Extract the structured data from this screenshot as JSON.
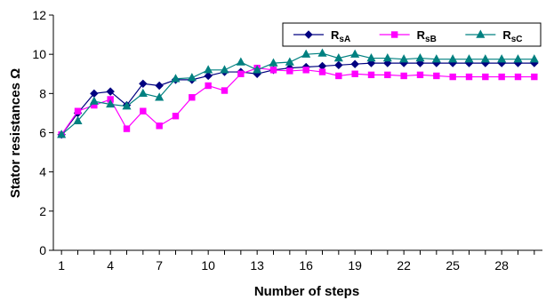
{
  "chart_data": {
    "type": "line",
    "title": "",
    "xlabel": "Number of steps",
    "ylabel": "Stator resistances Ω",
    "xlim": [
      0.5,
      30.5
    ],
    "ylim": [
      0,
      12
    ],
    "x_ticks": [
      1,
      4,
      7,
      10,
      13,
      16,
      19,
      22,
      25,
      28
    ],
    "y_ticks": [
      0,
      2,
      4,
      6,
      8,
      10,
      12
    ],
    "grid": false,
    "legend_position": "top-right",
    "x": [
      1,
      2,
      3,
      4,
      5,
      6,
      7,
      8,
      9,
      10,
      11,
      12,
      13,
      14,
      15,
      16,
      17,
      18,
      19,
      20,
      21,
      22,
      23,
      24,
      25,
      26,
      27,
      28,
      29,
      30
    ],
    "series": [
      {
        "name": "RsA",
        "name_main": "R",
        "name_sub": "sA",
        "color": "#000080",
        "marker": "diamond",
        "values": [
          5.9,
          7.0,
          8.0,
          8.1,
          7.4,
          8.5,
          8.4,
          8.7,
          8.7,
          8.9,
          9.1,
          9.1,
          9.0,
          9.2,
          9.3,
          9.35,
          9.4,
          9.45,
          9.5,
          9.55,
          9.55,
          9.55,
          9.55,
          9.55,
          9.55,
          9.55,
          9.55,
          9.55,
          9.55,
          9.55
        ]
      },
      {
        "name": "RsB",
        "name_main": "R",
        "name_sub": "sB",
        "color": "#ff00ff",
        "marker": "square",
        "values": [
          5.9,
          7.1,
          7.4,
          7.7,
          6.2,
          7.1,
          6.35,
          6.85,
          7.8,
          8.4,
          8.15,
          9.0,
          9.3,
          9.2,
          9.15,
          9.2,
          9.1,
          8.9,
          9.0,
          8.95,
          8.95,
          8.9,
          8.95,
          8.9,
          8.85,
          8.85,
          8.85,
          8.85,
          8.85,
          8.85
        ]
      },
      {
        "name": "RsC",
        "name_main": "R",
        "name_sub": "sC",
        "color": "#008080",
        "marker": "triangle",
        "values": [
          5.9,
          6.6,
          7.6,
          7.45,
          7.35,
          8.0,
          7.8,
          8.75,
          8.8,
          9.2,
          9.2,
          9.6,
          9.2,
          9.55,
          9.6,
          10.0,
          10.05,
          9.8,
          10.0,
          9.8,
          9.8,
          9.75,
          9.8,
          9.75,
          9.75,
          9.75,
          9.75,
          9.75,
          9.75,
          9.75
        ]
      }
    ]
  }
}
